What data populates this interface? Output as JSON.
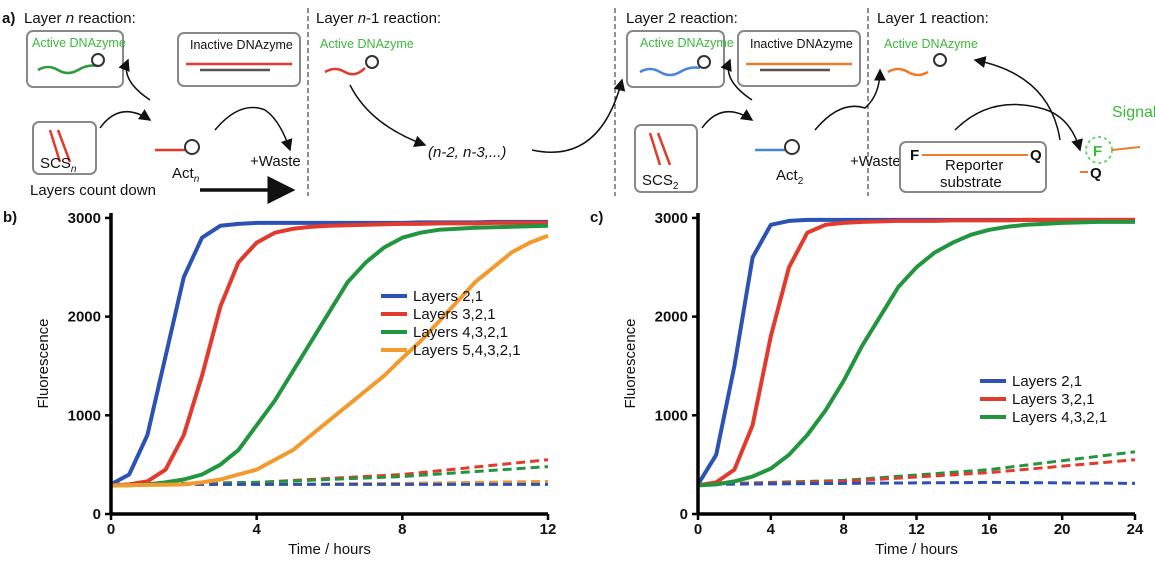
{
  "diagram": {
    "panel_label": "a)",
    "titles": [
      [
        "Layer ",
        "n",
        " reaction:"
      ],
      [
        "Layer ",
        "n",
        "-1 reaction:"
      ],
      [
        "Layer 2 reaction:"
      ],
      [
        "Layer 1 reaction:"
      ]
    ],
    "active": [
      "Active DNAzyme",
      "Active DNAzyme",
      "Active DNAzyme",
      "Active DNAzyme"
    ],
    "inactive": [
      "Inactive DNAzyme",
      "Inactive DNAzyme"
    ],
    "scs": [
      [
        "SCS",
        "n"
      ],
      [
        "SCS",
        "2"
      ]
    ],
    "act": [
      [
        "Act",
        "n"
      ],
      [
        "Act",
        "2"
      ]
    ],
    "waste": [
      "+Waste",
      "+Waste"
    ],
    "cascade": "(n-2, n-3,...)",
    "signal": "Signal",
    "reporter": {
      "f": "F",
      "q": "Q",
      "label": [
        "Reporter",
        "substrate"
      ]
    },
    "product": {
      "f": "F",
      "q": "Q"
    },
    "count_down": "Layers count down"
  },
  "chart_data": [
    {
      "type": "line",
      "panel_label": "b)",
      "xlabel": "Time / hours",
      "ylabel": "Fluorescence",
      "x": [
        0,
        0.5,
        1,
        1.5,
        2,
        2.5,
        3,
        3.5,
        4,
        4.5,
        5,
        5.5,
        6,
        6.5,
        7,
        7.5,
        8,
        8.5,
        9,
        9.5,
        10,
        10.5,
        11,
        11.5,
        12
      ],
      "xlim": [
        0,
        12
      ],
      "xticks": [
        0,
        4,
        8,
        12
      ],
      "ylim": [
        0,
        3050
      ],
      "yticks": [
        0,
        1000,
        2000,
        3000
      ],
      "legend_position": "center",
      "series": [
        {
          "name": "Layers 2,1",
          "color": "#2b52b4",
          "values": [
            300,
            400,
            800,
            1600,
            2400,
            2800,
            2920,
            2940,
            2950,
            2950,
            2950,
            2950,
            2950,
            2950,
            2950,
            2950,
            2950,
            2955,
            2955,
            2955,
            2955,
            2960,
            2960,
            2960,
            2960
          ]
        },
        {
          "name": "Layers 3,2,1",
          "color": "#e23a2c",
          "values": [
            290,
            300,
            330,
            450,
            800,
            1400,
            2100,
            2550,
            2750,
            2850,
            2890,
            2910,
            2920,
            2925,
            2930,
            2935,
            2940,
            2940,
            2945,
            2945,
            2945,
            2950,
            2950,
            2950,
            2950
          ]
        },
        {
          "name": "Layers 4,3,2,1",
          "color": "#22963f",
          "values": [
            290,
            292,
            300,
            320,
            350,
            400,
            500,
            650,
            900,
            1150,
            1450,
            1750,
            2050,
            2350,
            2550,
            2700,
            2800,
            2850,
            2880,
            2890,
            2900,
            2905,
            2910,
            2915,
            2920
          ]
        },
        {
          "name": "Layers 5,4,3,2,1",
          "color": "#f29a2e",
          "values": [
            290,
            292,
            295,
            297,
            300,
            320,
            350,
            400,
            450,
            550,
            650,
            800,
            950,
            1100,
            1250,
            1400,
            1580,
            1750,
            1950,
            2150,
            2350,
            2500,
            2650,
            2750,
            2820
          ]
        },
        {
          "color": "#e23a2c",
          "dashed": true,
          "x": [
            0,
            4,
            8,
            12
          ],
          "values": [
            300,
            320,
            400,
            550
          ]
        },
        {
          "color": "#22963f",
          "dashed": true,
          "x": [
            0,
            4,
            8,
            12
          ],
          "values": [
            300,
            320,
            380,
            480
          ]
        },
        {
          "color": "#f29a2e",
          "dashed": true,
          "x": [
            0,
            4,
            8,
            12
          ],
          "values": [
            300,
            300,
            310,
            330
          ]
        },
        {
          "color": "#2b52b4",
          "dashed": true,
          "x": [
            0,
            4,
            8,
            12
          ],
          "values": [
            300,
            300,
            300,
            300
          ]
        }
      ]
    },
    {
      "type": "line",
      "panel_label": "c)",
      "xlabel": "Time / hours",
      "ylabel": "Fluorescence",
      "x": [
        0,
        1,
        2,
        3,
        4,
        5,
        6,
        7,
        8,
        9,
        10,
        11,
        12,
        13,
        14,
        15,
        16,
        17,
        18,
        19,
        20,
        21,
        22,
        23,
        24
      ],
      "xlim": [
        0,
        24
      ],
      "xticks": [
        0,
        4,
        8,
        12,
        16,
        20,
        24
      ],
      "ylim": [
        0,
        3050
      ],
      "yticks": [
        0,
        1000,
        2000,
        3000
      ],
      "legend_position": "right",
      "series": [
        {
          "name": "Layers 2,1",
          "color": "#2b52b4",
          "values": [
            300,
            600,
            1500,
            2600,
            2930,
            2970,
            2980,
            2980,
            2980,
            2980,
            2980,
            2980,
            2980,
            2980,
            2980,
            2980,
            2980,
            2980,
            2980,
            2980,
            2980,
            2980,
            2980,
            2980,
            2980
          ]
        },
        {
          "name": "Layers 3,2,1",
          "color": "#e23a2c",
          "values": [
            290,
            320,
            450,
            900,
            1800,
            2500,
            2850,
            2930,
            2950,
            2960,
            2965,
            2970,
            2970,
            2970,
            2975,
            2975,
            2975,
            2975,
            2980,
            2980,
            2980,
            2980,
            2980,
            2980,
            2980
          ]
        },
        {
          "name": "Layers 4,3,2,1",
          "color": "#22963f",
          "values": [
            290,
            300,
            330,
            380,
            460,
            600,
            800,
            1050,
            1350,
            1700,
            2000,
            2300,
            2500,
            2650,
            2750,
            2830,
            2880,
            2910,
            2930,
            2940,
            2950,
            2955,
            2960,
            2960,
            2960
          ]
        },
        {
          "color": "#22963f",
          "dashed": true,
          "x": [
            0,
            8,
            16,
            24
          ],
          "values": [
            300,
            340,
            450,
            630
          ]
        },
        {
          "color": "#e23a2c",
          "dashed": true,
          "x": [
            0,
            8,
            16,
            24
          ],
          "values": [
            300,
            330,
            420,
            550
          ]
        },
        {
          "color": "#2b52b4",
          "dashed": true,
          "x": [
            0,
            8,
            16,
            24
          ],
          "values": [
            300,
            310,
            320,
            310
          ]
        }
      ]
    }
  ]
}
